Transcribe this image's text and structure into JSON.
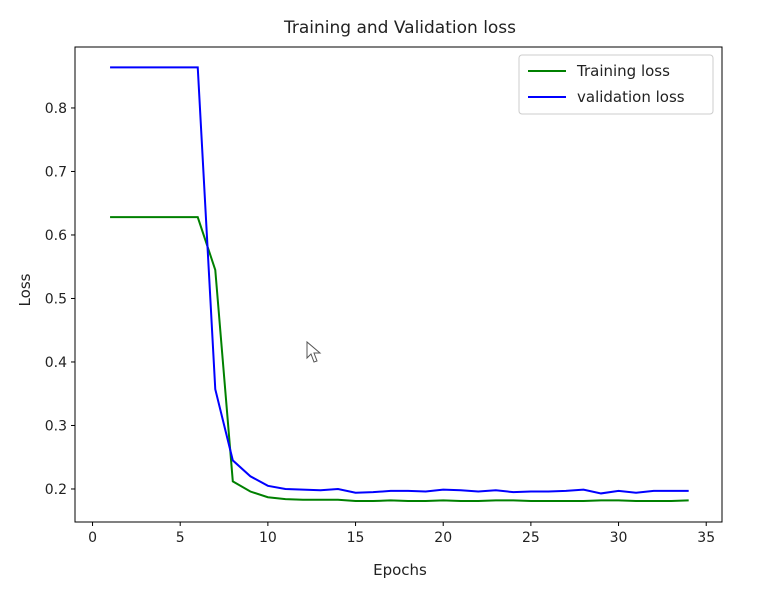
{
  "chart_data": {
    "type": "line",
    "title": "Training and Validation loss",
    "xlabel": "Epochs",
    "ylabel": "Loss",
    "xlim": [
      -1.0,
      35.9
    ],
    "ylim": [
      0.148,
      0.896
    ],
    "xticks": [
      0,
      5,
      10,
      15,
      20,
      25,
      30,
      35
    ],
    "yticks": [
      0.2,
      0.3,
      0.4,
      0.5,
      0.6,
      0.7,
      0.8
    ],
    "grid": false,
    "legend_placement": "upper right",
    "x": [
      1,
      2,
      3,
      4,
      5,
      6,
      7,
      8,
      9,
      10,
      11,
      12,
      13,
      14,
      15,
      16,
      17,
      18,
      19,
      20,
      21,
      22,
      23,
      24,
      25,
      26,
      27,
      28,
      29,
      30,
      31,
      32,
      33,
      34
    ],
    "series": [
      {
        "name": "Training loss",
        "color": "#008000",
        "values": [
          0.628,
          0.628,
          0.628,
          0.628,
          0.628,
          0.628,
          0.545,
          0.212,
          0.196,
          0.187,
          0.184,
          0.183,
          0.183,
          0.183,
          0.181,
          0.181,
          0.182,
          0.181,
          0.181,
          0.182,
          0.181,
          0.181,
          0.182,
          0.182,
          0.181,
          0.181,
          0.181,
          0.181,
          0.182,
          0.182,
          0.181,
          0.181,
          0.181,
          0.182
        ]
      },
      {
        "name": "validation loss",
        "color": "#0000ff",
        "values": [
          0.864,
          0.864,
          0.864,
          0.864,
          0.864,
          0.864,
          0.357,
          0.245,
          0.22,
          0.205,
          0.2,
          0.199,
          0.198,
          0.2,
          0.194,
          0.195,
          0.197,
          0.197,
          0.196,
          0.199,
          0.198,
          0.196,
          0.198,
          0.195,
          0.196,
          0.196,
          0.197,
          0.199,
          0.193,
          0.197,
          0.194,
          0.197,
          0.197,
          0.197
        ]
      }
    ]
  }
}
